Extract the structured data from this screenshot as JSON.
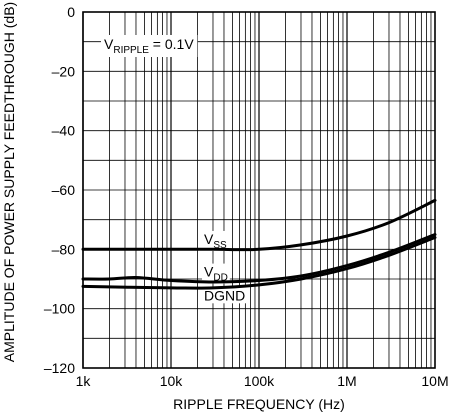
{
  "chart_data": {
    "type": "line",
    "title": "",
    "xlabel": "RIPPLE FREQUENCY (Hz)",
    "ylabel": "AMPLITUDE OF POWER SUPPLY FEEDTHROUGH (dB)",
    "xscale": "log",
    "xlim": [
      1000,
      10000000
    ],
    "ylim": [
      -120,
      0
    ],
    "grid": true,
    "x_ticks": [
      {
        "value": 1000,
        "label": "1k"
      },
      {
        "value": 10000,
        "label": "10k"
      },
      {
        "value": 100000,
        "label": "100k"
      },
      {
        "value": 1000000,
        "label": "1M"
      },
      {
        "value": 10000000,
        "label": "10M"
      }
    ],
    "y_ticks": [
      {
        "value": 0,
        "label": "0"
      },
      {
        "value": -20,
        "label": "–20"
      },
      {
        "value": -40,
        "label": "–40"
      },
      {
        "value": -60,
        "label": "–60"
      },
      {
        "value": -80,
        "label": "–80"
      },
      {
        "value": -100,
        "label": "–100"
      },
      {
        "value": -120,
        "label": "–120"
      }
    ],
    "annotation": {
      "main": "V",
      "sub": "RIPPLE",
      "suffix": " = 0.1V"
    },
    "series": [
      {
        "name": "V_SS",
        "label_main": "V",
        "label_sub": "SS",
        "label_at": {
          "x": 25000,
          "y": -76.5
        },
        "points": [
          [
            1000,
            -80
          ],
          [
            10000,
            -80
          ],
          [
            30000,
            -80
          ],
          [
            100000,
            -80
          ],
          [
            300000,
            -78.5
          ],
          [
            1000000,
            -75.5
          ],
          [
            3000000,
            -71
          ],
          [
            10000000,
            -63.5
          ]
        ]
      },
      {
        "name": "V_DD",
        "label_main": "V",
        "label_sub": "DD",
        "label_at": {
          "x": 25000,
          "y": -87.5
        },
        "points": [
          [
            1000,
            -90
          ],
          [
            2000,
            -90
          ],
          [
            4000,
            -89.5
          ],
          [
            10000,
            -90.5
          ],
          [
            30000,
            -91
          ],
          [
            100000,
            -90.5
          ],
          [
            300000,
            -89
          ],
          [
            1000000,
            -85.5
          ],
          [
            3000000,
            -81
          ],
          [
            10000000,
            -75
          ]
        ]
      },
      {
        "name": "DGND",
        "label_main": "DGND",
        "label_sub": "",
        "label_at": {
          "x": 25000,
          "y": -95.5
        },
        "points": [
          [
            1000,
            -92.5
          ],
          [
            10000,
            -93
          ],
          [
            30000,
            -93
          ],
          [
            100000,
            -92
          ],
          [
            300000,
            -90
          ],
          [
            1000000,
            -86.5
          ],
          [
            3000000,
            -82
          ],
          [
            10000000,
            -76
          ]
        ]
      }
    ]
  }
}
